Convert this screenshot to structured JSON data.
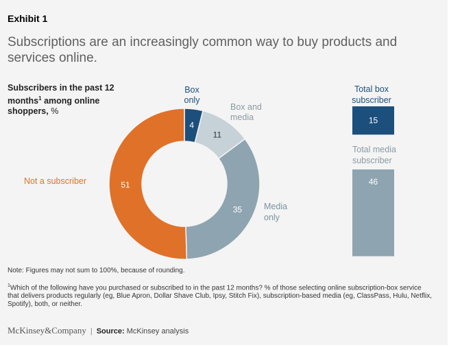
{
  "exhibit": "Exhibit 1",
  "title": "Subscriptions are an increasingly common way to buy products and services online.",
  "subtitle": {
    "bold": "Subscribers in the past 12 months",
    "sup": "1",
    "bold2": " among online shoppers,",
    "unit": " %"
  },
  "colors": {
    "box_only": "#1d4f7c",
    "box_and_media": "#c6d1d8",
    "media_only": "#8ea4b0",
    "not_subscriber": "#e07128",
    "box_total": "#1d4f7c",
    "media_total": "#8ea4b0"
  },
  "chart_data": [
    {
      "type": "pie",
      "donut": true,
      "slices": [
        {
          "label": "Box only",
          "value": 4
        },
        {
          "label": "Box and media",
          "value": 11
        },
        {
          "label": "Media only",
          "value": 35
        },
        {
          "label": "Not a subscriber",
          "value": 51
        }
      ]
    },
    {
      "type": "bar",
      "bars": [
        {
          "label": "Total box subscriber",
          "value": 15
        },
        {
          "label": "Total media subscriber",
          "value": 46
        }
      ]
    }
  ],
  "labels": {
    "box_only": [
      "Box",
      "only"
    ],
    "box_and_media": [
      "Box and",
      "media"
    ],
    "media_only": [
      "Media",
      "only"
    ],
    "not_subscriber": "Not a subscriber",
    "total_box": [
      "Total box",
      "subscriber"
    ],
    "total_media": [
      "Total media",
      "subscriber"
    ]
  },
  "note": "Note: Figures may not sum to 100%, because of rounding.",
  "footnote": "Which of the following have you purchased or subscribed to in the past 12 months? % of those selecting online subscription-box service that delivers products regularly (eg, Blue Apron, Dollar Shave Club, Ipsy, Stitch Fix), subscription-based media (eg, ClassPass, Hulu, Netflix, Spotify), both, or neither.",
  "footnote_mark": "1",
  "footer": {
    "logo": "McKinsey&Company",
    "sep": "|",
    "source_label": "Source:",
    "source_text": " McKinsey analysis"
  }
}
